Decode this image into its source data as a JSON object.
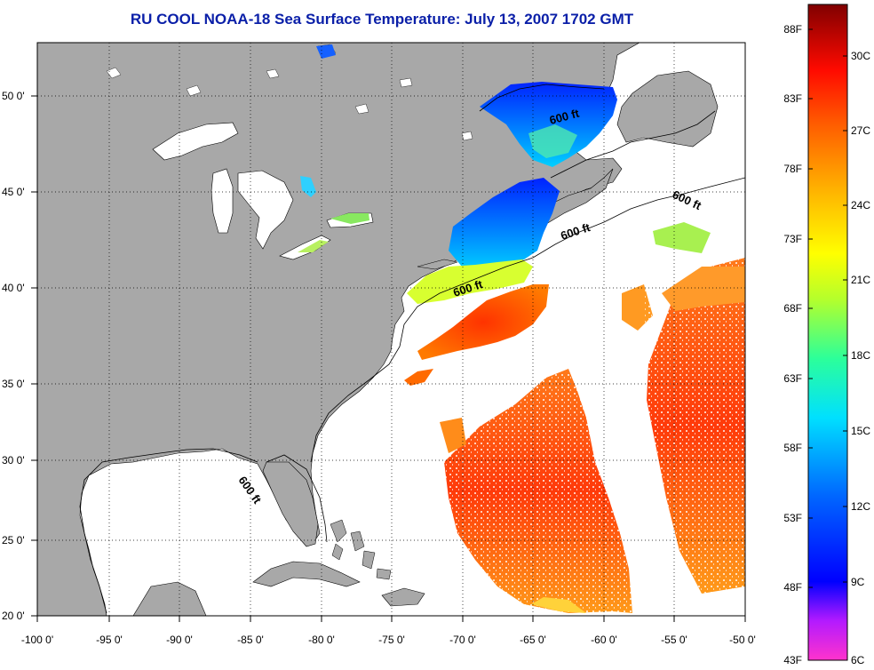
{
  "title": "RU COOL  NOAA-18  Sea Surface Temperature:  July 13, 2007 1702 GMT",
  "map": {
    "lon_labels": [
      "-100 0'",
      "-95 0'",
      "-90 0'",
      "-85 0'",
      "-80 0'",
      "-75 0'",
      "-70 0'",
      "-65 0'",
      "-60 0'",
      "-55 0'",
      "-50 0'"
    ],
    "lat_labels": [
      "50 0'",
      "45 0'",
      "40 0'",
      "35 0'",
      "30 0'",
      "25 0'",
      "20 0'"
    ],
    "isobath_labels": [
      "600 ft",
      "600 ft",
      "600 ft",
      "600 ft",
      "600 ft"
    ],
    "lon_range": [
      -100,
      -50
    ],
    "lat_range": [
      20,
      52.5
    ],
    "grid": "dotted",
    "colors": {
      "land": "#a8a8a8",
      "ocean": "#ffffff",
      "coast": "#000000"
    }
  },
  "colorbar": {
    "fahrenheit": [
      "88F",
      "83F",
      "78F",
      "73F",
      "68F",
      "63F",
      "58F",
      "53F",
      "48F",
      "43F"
    ],
    "celsius": [
      "30C",
      "27C",
      "24C",
      "21C",
      "18C",
      "15C",
      "12C",
      "9C",
      "6C"
    ],
    "range_c": [
      6,
      32
    ],
    "stops": [
      "#ff33cc",
      "#6a00ff",
      "#0000ff",
      "#0077ff",
      "#00dcff",
      "#2cff9a",
      "#a4ff2c",
      "#ffff00",
      "#ffb000",
      "#ff6600",
      "#ff1a00",
      "#cc0000",
      "#800000"
    ]
  }
}
